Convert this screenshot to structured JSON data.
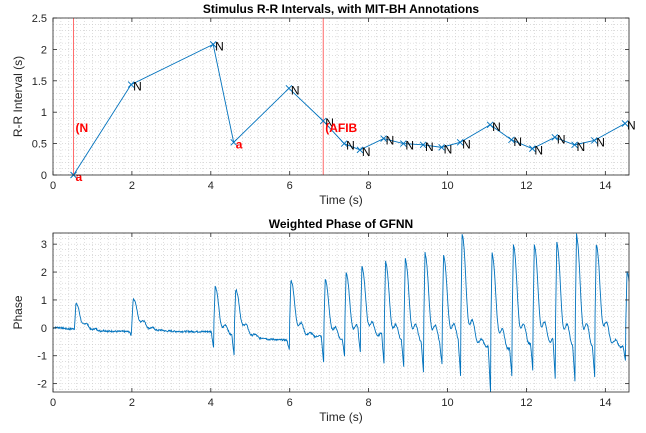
{
  "chart_data": [
    {
      "type": "line",
      "title": "Stimulus R-R Intervals, with MIT-BH Annotations",
      "xlabel": "Time (s)",
      "ylabel": "R-R Interval (s)",
      "xlim": [
        0,
        14.6
      ],
      "ylim": [
        0,
        2.5
      ],
      "xticks": [
        0,
        2,
        4,
        6,
        8,
        10,
        12,
        14
      ],
      "yticks": [
        0,
        0.5,
        1,
        1.5,
        2,
        2.5
      ],
      "ytick_labels": [
        "0",
        "0.5",
        "1",
        "1.5",
        "2",
        "2.5"
      ],
      "grid": "minor dotted",
      "series": [
        {
          "color": "#0072BD",
          "marker": "x",
          "x": [
            0.52,
            1.98,
            4.06,
            4.58,
            5.98,
            6.85,
            7.38,
            7.78,
            8.38,
            8.88,
            9.38,
            9.85,
            10.32,
            11.08,
            11.62,
            12.15,
            12.72,
            13.22,
            13.72,
            14.5
          ],
          "y": [
            0.0,
            1.44,
            2.08,
            0.52,
            1.38,
            0.86,
            0.5,
            0.4,
            0.58,
            0.5,
            0.48,
            0.44,
            0.52,
            0.8,
            0.56,
            0.42,
            0.6,
            0.48,
            0.55,
            0.82
          ]
        }
      ],
      "point_labels": [
        "a",
        "N",
        "N",
        "a",
        "N",
        "N",
        "N",
        "N",
        "N",
        "N",
        "N",
        "N",
        "N",
        "N",
        "N",
        "N",
        "N",
        "N",
        "N",
        "N"
      ],
      "point_label_colors": [
        "red",
        "black",
        "black",
        "red",
        "black",
        "black",
        "black",
        "black",
        "black",
        "black",
        "black",
        "black",
        "black",
        "black",
        "black",
        "black",
        "black",
        "black",
        "black",
        "black"
      ],
      "rhythm_annotations": [
        {
          "x": 0.52,
          "y": 0.75,
          "label": "(N",
          "color": "#ff0000"
        },
        {
          "x": 6.85,
          "y": 0.75,
          "label": "(AFIB",
          "color": "#ff0000"
        }
      ]
    },
    {
      "type": "line",
      "title": "Weighted Phase of GFNN",
      "xlabel": "Time (s)",
      "ylabel": "Phase",
      "xlim": [
        0,
        14.6
      ],
      "ylim": [
        -2.3,
        3.4
      ],
      "xticks": [
        0,
        2,
        4,
        6,
        8,
        10,
        12,
        14
      ],
      "yticks": [
        -2,
        -1,
        0,
        1,
        2,
        3
      ],
      "grid": "minor dotted",
      "series": [
        {
          "color": "#0072BD",
          "beats": [
            [
              0.54,
              0.85,
              -0.3
            ],
            [
              1.99,
              1.0,
              -0.3
            ],
            [
              4.07,
              1.5,
              -0.7
            ],
            [
              4.59,
              1.35,
              -1.0
            ],
            [
              5.99,
              1.7,
              -0.8
            ],
            [
              6.86,
              1.75,
              -1.25
            ],
            [
              7.39,
              2.0,
              -1.0
            ],
            [
              7.79,
              2.2,
              -0.85
            ],
            [
              8.39,
              2.4,
              -1.3
            ],
            [
              8.89,
              2.5,
              -1.4
            ],
            [
              9.39,
              2.7,
              -1.6
            ],
            [
              9.86,
              2.6,
              -1.3
            ],
            [
              10.33,
              3.35,
              -1.7
            ],
            [
              11.09,
              2.7,
              -2.3
            ],
            [
              11.63,
              3.0,
              -1.7
            ],
            [
              12.16,
              3.0,
              -1.5
            ],
            [
              12.73,
              3.1,
              -1.8
            ],
            [
              13.23,
              3.35,
              -1.9
            ],
            [
              13.73,
              3.0,
              -1.75
            ],
            [
              14.51,
              2.0,
              -1.2
            ]
          ]
        }
      ]
    }
  ]
}
